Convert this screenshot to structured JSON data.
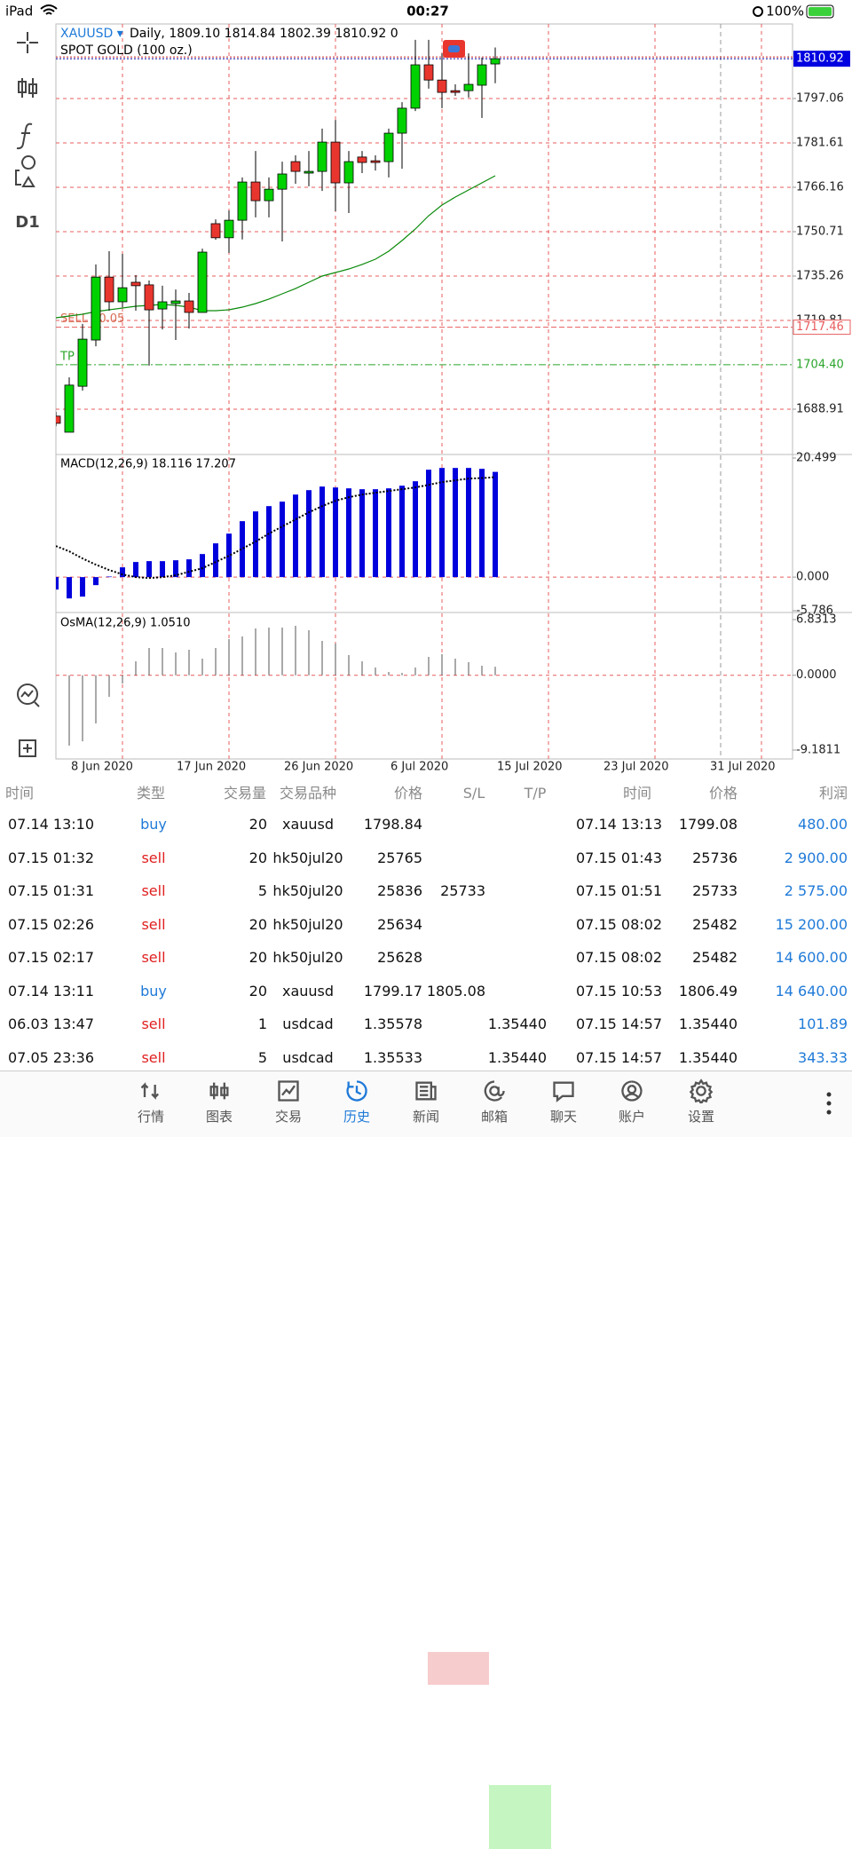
{
  "status": {
    "device": "iPad",
    "time": "00:27",
    "battery": "100%"
  },
  "toolbar": {
    "timeframe": "D1"
  },
  "chart_data": [
    {
      "type": "candlestick",
      "symbol": "XAUUSD ▾",
      "header": "Daily, 1809.10 1814.84 1802.39 1810.92 0",
      "description": "SPOT GOLD (100 oz.)",
      "ylim": [
        1673.15,
        1823.02
      ],
      "yticks": [
        1797.06,
        1781.61,
        1766.16,
        1750.71,
        1735.26,
        1719.81,
        1688.91
      ],
      "grid": true,
      "last_price": 1810.92,
      "sell": {
        "label": "SELL 10.05",
        "price": 1717.46
      },
      "tp": {
        "label": "TP",
        "price": {
          "value": 1704.4,
          "label": "1704.40"
        }
      },
      "xlabels": [
        "8 Jun 2020",
        "17 Jun 2020",
        "26 Jun 2020",
        "6 Jul 2020",
        "15 Jul 2020",
        "23 Jul 2020",
        "31 Jul 2020"
      ],
      "up_color": "#00d200",
      "down_color": "#e8362e",
      "ma_color": "#0a8a0a",
      "candles": [
        {
          "open": 1686.5,
          "high": 1688,
          "low": 1683,
          "close": 1684
        },
        {
          "open": 1680.9,
          "high": 1700,
          "low": 1680.9,
          "close": 1697.3
        },
        {
          "open": 1696.9,
          "high": 1718.6,
          "low": 1695.4,
          "close": 1713.3
        },
        {
          "open": 1713,
          "high": 1739.3,
          "low": 1710.8,
          "close": 1734.9
        },
        {
          "open": 1734.9,
          "high": 1743.9,
          "low": 1723.2,
          "close": 1726.3
        },
        {
          "open": 1726.3,
          "high": 1743,
          "low": 1724.4,
          "close": 1731.2
        },
        {
          "open": 1733.1,
          "high": 1735.6,
          "low": 1723.2,
          "close": 1731.9
        },
        {
          "open": 1732.2,
          "high": 1733.7,
          "low": 1704.1,
          "close": 1723.5
        },
        {
          "open": 1723.8,
          "high": 1731.9,
          "low": 1716.7,
          "close": 1726.3
        },
        {
          "open": 1725.7,
          "high": 1730.6,
          "low": 1713,
          "close": 1726.6
        },
        {
          "open": 1726.6,
          "high": 1729.4,
          "low": 1717,
          "close": 1722.6
        },
        {
          "open": 1722.6,
          "high": 1744.8,
          "low": 1722.6,
          "close": 1743.6
        },
        {
          "open": 1753.5,
          "high": 1755,
          "low": 1747.9,
          "close": 1748.6
        },
        {
          "open": 1748.6,
          "high": 1758.1,
          "low": 1743.3,
          "close": 1754.7
        },
        {
          "open": 1754.7,
          "high": 1769.6,
          "low": 1748,
          "close": 1768
        },
        {
          "open": 1768,
          "high": 1778.8,
          "low": 1755.7,
          "close": 1761.5
        },
        {
          "open": 1761.5,
          "high": 1769.6,
          "low": 1755.7,
          "close": 1765.5
        },
        {
          "open": 1765.5,
          "high": 1775.1,
          "low": 1747.3,
          "close": 1770.8
        },
        {
          "open": 1775.1,
          "high": 1777.3,
          "low": 1767.4,
          "close": 1771.7
        },
        {
          "open": 1771.1,
          "high": 1778.8,
          "low": 1766.5,
          "close": 1771.7
        },
        {
          "open": 1771.7,
          "high": 1786.6,
          "low": 1764.9,
          "close": 1781.9
        },
        {
          "open": 1781.9,
          "high": 1789.6,
          "low": 1757.8,
          "close": 1767.7
        },
        {
          "open": 1767.7,
          "high": 1778.8,
          "low": 1757.2,
          "close": 1775.1
        },
        {
          "open": 1776.7,
          "high": 1778.8,
          "low": 1771.1,
          "close": 1774.8
        },
        {
          "open": 1775.4,
          "high": 1777.3,
          "low": 1772,
          "close": 1774.8
        },
        {
          "open": 1775.1,
          "high": 1786.6,
          "low": 1769.6,
          "close": 1785
        },
        {
          "open": 1785,
          "high": 1795.8,
          "low": 1772.6,
          "close": 1793.7
        },
        {
          "open": 1793.7,
          "high": 1817.5,
          "low": 1792.7,
          "close": 1808.8
        },
        {
          "open": 1808.8,
          "high": 1817.5,
          "low": 1800.5,
          "close": 1803.5
        },
        {
          "open": 1803.5,
          "high": 1812.8,
          "low": 1793.7,
          "close": 1799.2
        },
        {
          "open": 1799.8,
          "high": 1802,
          "low": 1798,
          "close": 1799.2
        },
        {
          "open": 1799.8,
          "high": 1812.8,
          "low": 1797.4,
          "close": 1802
        },
        {
          "open": 1801.7,
          "high": 1811.3,
          "low": 1790.3,
          "close": 1808.8
        },
        {
          "open": 1809.1,
          "high": 1814.84,
          "low": 1802.39,
          "close": 1810.92
        }
      ],
      "ma": [
        1720.74,
        1721.35,
        1721.97,
        1722.9,
        1723.52,
        1724.14,
        1724.75,
        1725.06,
        1725.37,
        1725.06,
        1724.44,
        1723.21,
        1723.21,
        1723.52,
        1724.44,
        1725.68,
        1727.23,
        1729.08,
        1730.93,
        1733.1,
        1735.26,
        1736.5,
        1737.73,
        1739.28,
        1741.13,
        1743.91,
        1747.62,
        1751.64,
        1756.27,
        1759.98,
        1762.76,
        1765.23,
        1767.7,
        1770.18
      ]
    },
    {
      "type": "bar",
      "title": "MACD(12,26,9) 18.116 17.207",
      "ylim": [
        -5.786,
        20.499
      ],
      "yticks": [
        20.499,
        {
          "value": 0,
          "label": "0.000"
        },
        -5.786
      ],
      "color": "#0000dd",
      "values": [
        -2.14,
        -3.67,
        -3.36,
        -1.38,
        0.1,
        1.68,
        2.6,
        2.75,
        2.75,
        2.9,
        3.06,
        3.97,
        5.81,
        7.49,
        9.63,
        11.31,
        12.22,
        12.99,
        14.21,
        14.97,
        15.59,
        15.43,
        15.28,
        15.13,
        15.13,
        15.28,
        15.74,
        16.5,
        18.49,
        18.79,
        18.79,
        18.79,
        18.64,
        18.116
      ],
      "signal": [
        5.35,
        4.43,
        3.21,
        2.14,
        1.22,
        0.46,
        0,
        -0.15,
        0,
        0.31,
        0.92,
        1.53,
        2.6,
        3.67,
        4.89,
        6.11,
        7.49,
        8.71,
        9.93,
        11.15,
        12.22,
        13.14,
        13.75,
        14.21,
        14.52,
        14.82,
        15.13,
        15.43,
        15.89,
        16.35,
        16.66,
        16.96,
        17.05,
        17.207
      ]
    },
    {
      "type": "bar",
      "title": "OsMA(12,26,9) 1.0510",
      "ylim": [
        -9.1811,
        6.8313
      ],
      "yticks": [
        6.8313,
        {
          "value": 0,
          "label": "0.0000"
        },
        -9.1811
      ],
      "color": "#555555",
      "values": [
        null,
        -8.64,
        -8.1,
        -5.92,
        -2.65,
        -1.01,
        1.71,
        3.35,
        3.35,
        2.8,
        3.13,
        2.04,
        3.35,
        4.44,
        4.76,
        5.74,
        5.85,
        5.85,
        6.07,
        5.53,
        4.22,
        3.89,
        2.47,
        1.71,
        0.95,
        0.4,
        0.29,
        0.95,
        2.26,
        2.58,
        2.04,
        1.6,
        1.17,
        1.051
      ]
    }
  ],
  "history": {
    "headers": [
      "时间",
      "类型",
      "交易量",
      "交易品种",
      "价格",
      "S/L",
      "T/P",
      "时间",
      "价格",
      "利润"
    ],
    "rows": [
      {
        "open_time": "07.14 13:10",
        "type": "buy",
        "volume": "20",
        "symbol": "xauusd",
        "price": "1798.84",
        "close_time": "07.14 13:13",
        "close_price": "1799.08",
        "profit": "480.00"
      },
      {
        "open_time": "07.15 01:32",
        "type": "sell",
        "volume": "20",
        "symbol": "hk50jul20",
        "price": "25765",
        "close_time": "07.15 01:43",
        "close_price": "25736",
        "profit": "2 900.00"
      },
      {
        "open_time": "07.15 01:31",
        "type": "sell",
        "volume": "5",
        "symbol": "hk50jul20",
        "price": "25836",
        "sl": "25733",
        "close_time": "07.15 01:51",
        "close_price": "25733",
        "profit": "2 575.00"
      },
      {
        "open_time": "07.15 02:26",
        "type": "sell",
        "volume": "20",
        "symbol": "hk50jul20",
        "price": "25634",
        "close_time": "07.15 08:02",
        "close_price": "25482",
        "profit": "15 200.00"
      },
      {
        "open_time": "07.15 02:17",
        "type": "sell",
        "volume": "20",
        "symbol": "hk50jul20",
        "price": "25628",
        "close_time": "07.15 08:02",
        "close_price": "25482",
        "profit": "14 600.00"
      },
      {
        "open_time": "07.14 13:11",
        "type": "buy",
        "volume": "20",
        "symbol": "xauusd",
        "price": "1799.17",
        "sl": "1805.08",
        "close_time": "07.15 10:53",
        "close_price": "1806.49",
        "profit": "14 640.00"
      },
      {
        "open_time": "06.03 13:47",
        "type": "sell",
        "volume": "1",
        "symbol": "usdcad",
        "price": "1.35578",
        "tp": "1.35440",
        "close_time": "07.15 14:57",
        "close_price": "1.35440",
        "profit": "101.89"
      },
      {
        "open_time": "07.05 23:36",
        "type": "sell",
        "volume": "5",
        "symbol": "usdcad",
        "price": "1.35533",
        "tp": "1.35440",
        "close_time": "07.15 14:57",
        "close_price": "1.35440",
        "profit": "343.33"
      }
    ]
  },
  "tabs": [
    "行情",
    "图表",
    "交易",
    "历史",
    "新闻",
    "邮箱",
    "聊天",
    "账户",
    "设置"
  ]
}
